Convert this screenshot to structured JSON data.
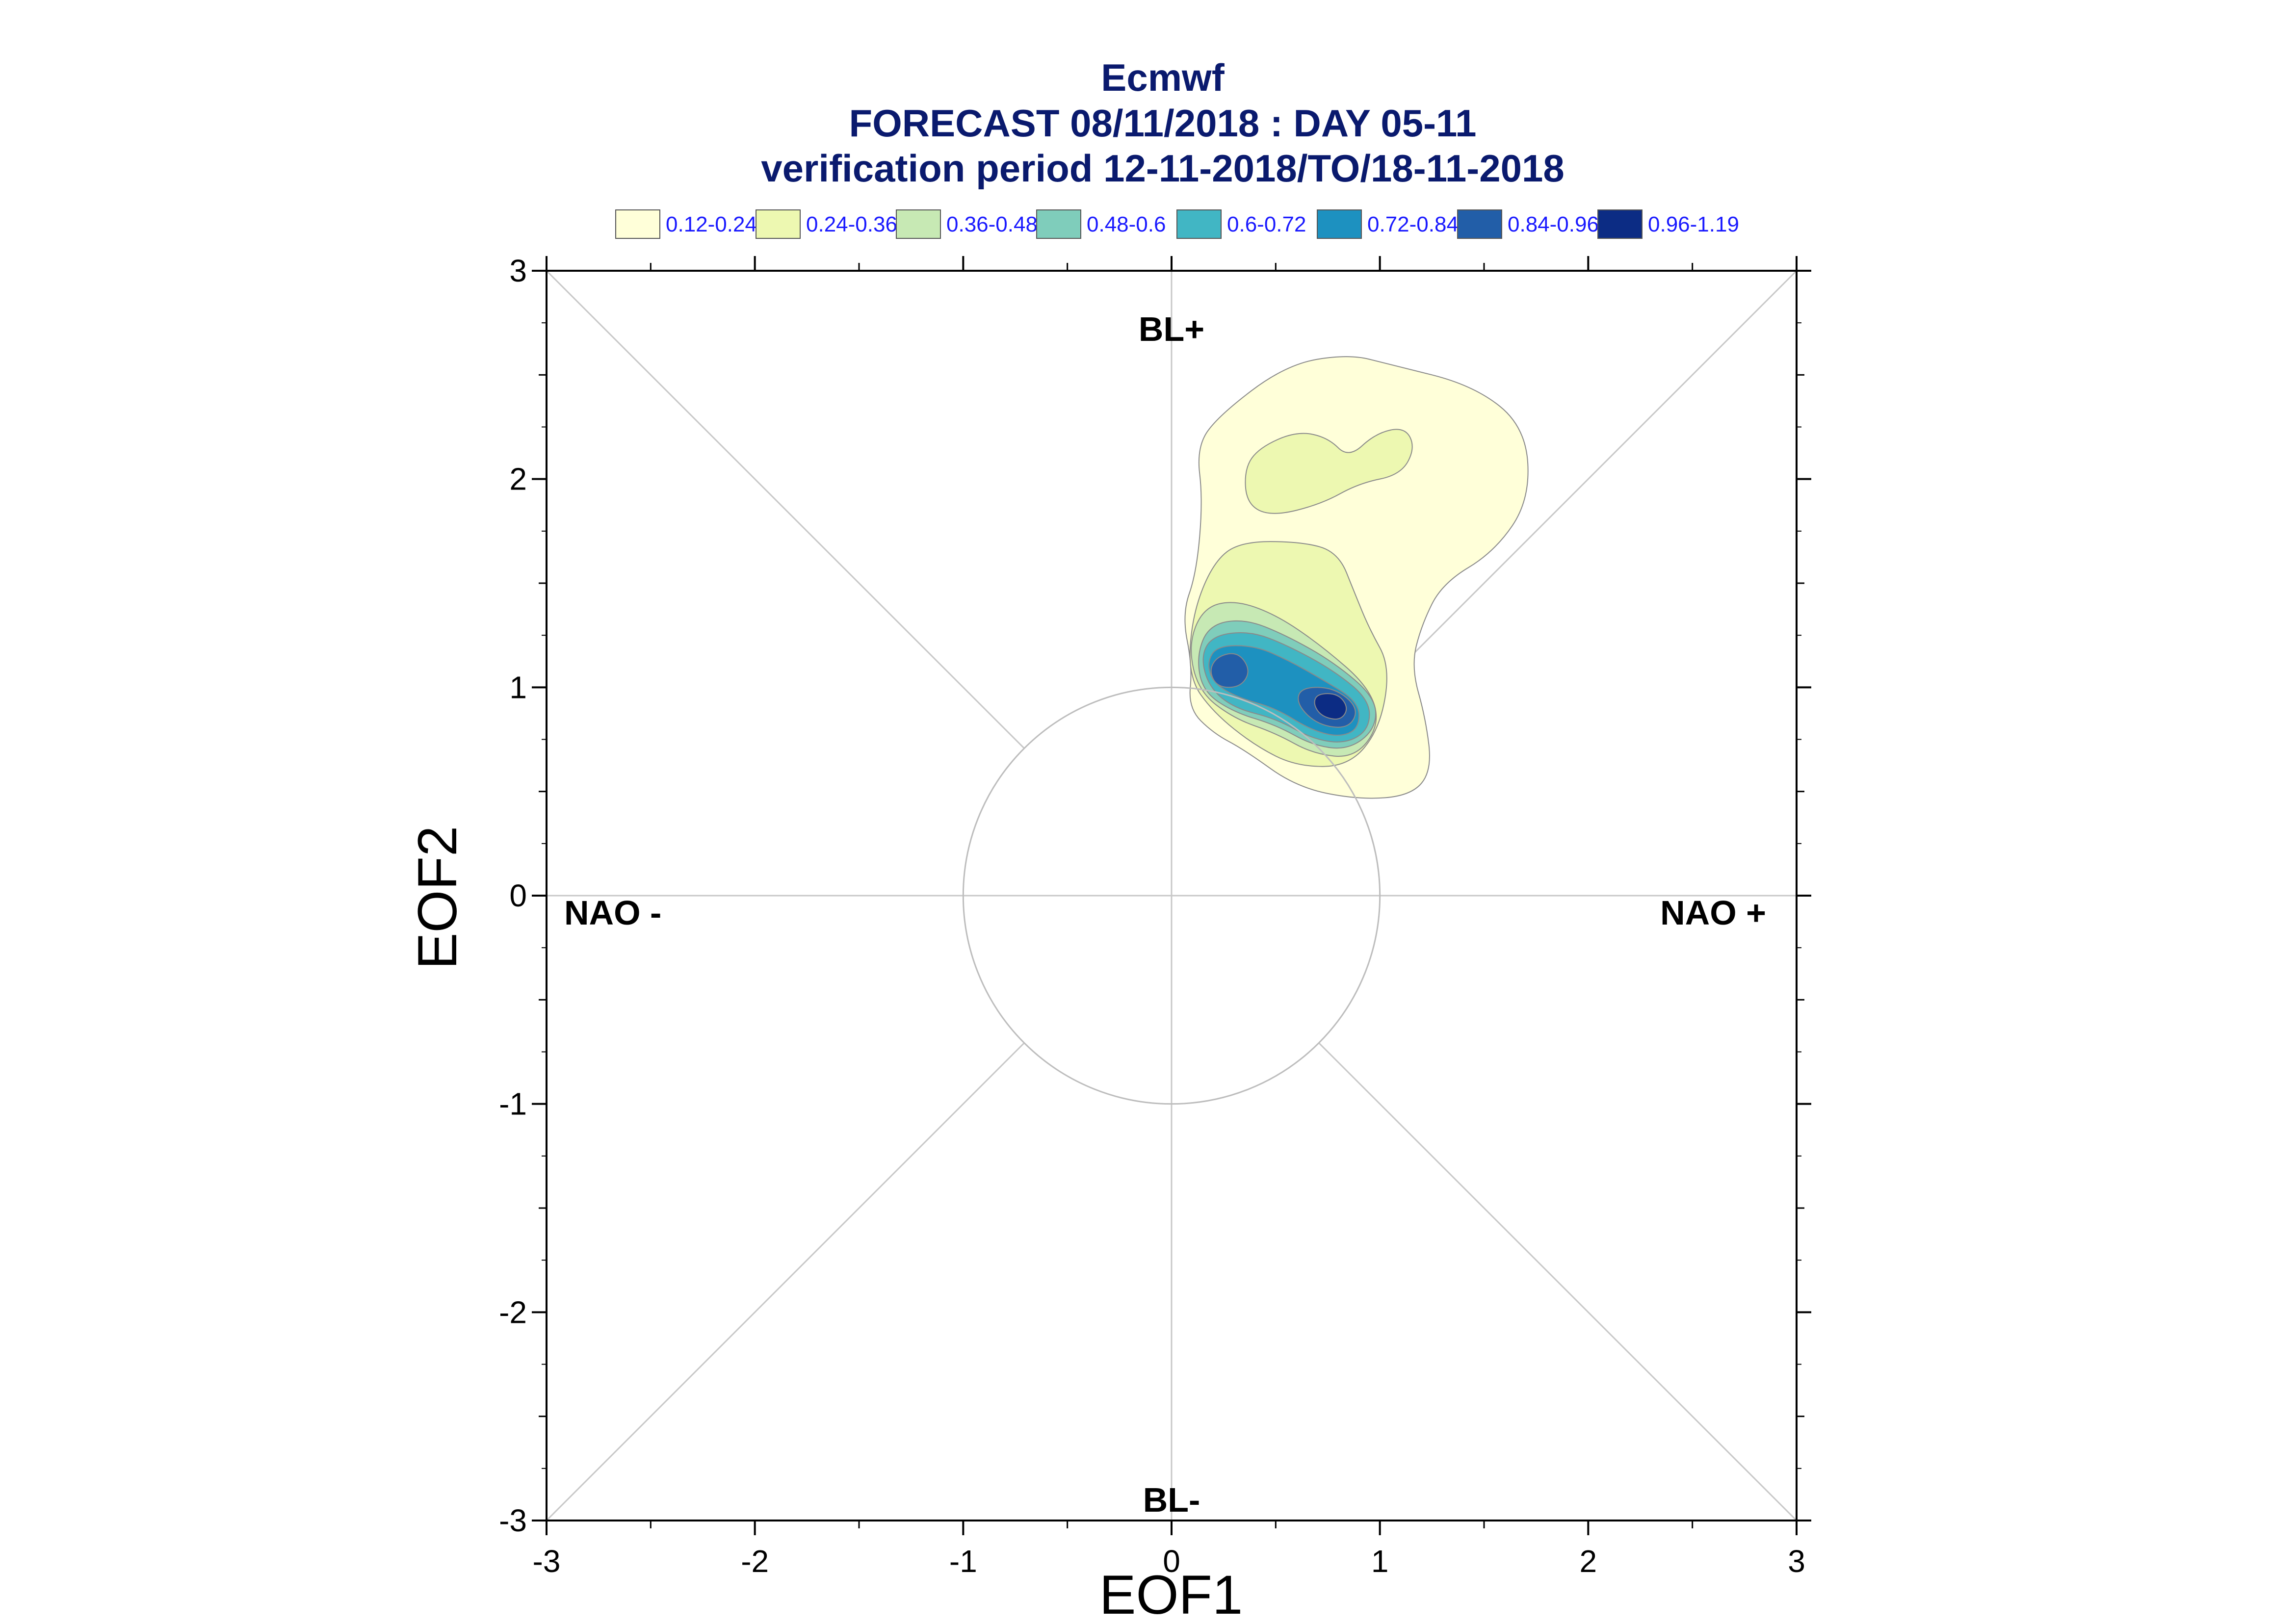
{
  "title": {
    "line1": "Ecmwf",
    "line2": "FORECAST 08/11/2018 : DAY 05-11",
    "line3": "verification period 12-11-2018/TO/18-11-2018"
  },
  "legend": [
    {
      "label": "0.12-0.24",
      "color": "#ffffd9"
    },
    {
      "label": "0.24-0.36",
      "color": "#edf8b1"
    },
    {
      "label": "0.36-0.48",
      "color": "#c7e9b4"
    },
    {
      "label": "0.48-0.6",
      "color": "#7fcdbb"
    },
    {
      "label": "0.6-0.72",
      "color": "#41b6c4"
    },
    {
      "label": "0.72-0.84",
      "color": "#1d91c0"
    },
    {
      "label": "0.84-0.96",
      "color": "#225ea8"
    },
    {
      "label": "0.96-1.19",
      "color": "#0c2c84"
    }
  ],
  "regimes": {
    "top": "BL+",
    "bottom": "BL-",
    "left": "NAO -",
    "right": "NAO +"
  },
  "chart_data": {
    "type": "contour",
    "xlabel": "EOF1",
    "ylabel": "EOF2",
    "xlim": [
      -3,
      3
    ],
    "ylim": [
      -3,
      3
    ],
    "xticks": [
      "-3",
      "-2",
      "-1",
      "0",
      "1",
      "2",
      "3"
    ],
    "yticks": [
      "3",
      "2",
      "1",
      "0",
      "-1",
      "-2",
      "-3"
    ],
    "reference_circle_radius": 1,
    "density_levels": [
      0.12,
      0.24,
      0.36,
      0.48,
      0.6,
      0.72,
      0.84,
      0.96,
      1.19
    ],
    "contours": [
      {
        "level": "0.12-0.24",
        "points": [
          [
            0.1,
            1.1
          ],
          [
            0.05,
            1.35
          ],
          [
            0.12,
            1.55
          ],
          [
            0.15,
            1.9
          ],
          [
            0.12,
            2.15
          ],
          [
            0.22,
            2.3
          ],
          [
            0.55,
            2.55
          ],
          [
            0.85,
            2.6
          ],
          [
            1.05,
            2.55
          ],
          [
            1.45,
            2.45
          ],
          [
            1.7,
            2.25
          ],
          [
            1.72,
            1.9
          ],
          [
            1.55,
            1.65
          ],
          [
            1.3,
            1.5
          ],
          [
            1.2,
            1.3
          ],
          [
            1.15,
            1.1
          ],
          [
            1.22,
            0.85
          ],
          [
            1.25,
            0.6
          ],
          [
            1.15,
            0.48
          ],
          [
            0.9,
            0.46
          ],
          [
            0.6,
            0.52
          ],
          [
            0.35,
            0.7
          ],
          [
            0.2,
            0.78
          ],
          [
            0.08,
            0.9
          ]
        ]
      },
      {
        "level": "0.24-0.36",
        "points": [
          [
            0.33,
            1.7
          ],
          [
            0.62,
            1.7
          ],
          [
            0.8,
            1.65
          ],
          [
            0.88,
            1.45
          ],
          [
            0.95,
            1.28
          ],
          [
            1.05,
            1.1
          ],
          [
            1.0,
            0.8
          ],
          [
            0.85,
            0.62
          ],
          [
            0.6,
            0.62
          ],
          [
            0.4,
            0.72
          ],
          [
            0.2,
            0.88
          ],
          [
            0.08,
            1.05
          ],
          [
            0.1,
            1.35
          ],
          [
            0.2,
            1.6
          ]
        ]
      },
      {
        "level": "0.24-0.36",
        "points": [
          [
            0.35,
            2.05
          ],
          [
            0.42,
            2.15
          ],
          [
            0.6,
            2.23
          ],
          [
            0.75,
            2.2
          ],
          [
            0.85,
            2.1
          ],
          [
            0.98,
            2.22
          ],
          [
            1.12,
            2.25
          ],
          [
            1.17,
            2.15
          ],
          [
            1.1,
            2.02
          ],
          [
            0.9,
            1.98
          ],
          [
            0.72,
            1.88
          ],
          [
            0.48,
            1.82
          ],
          [
            0.36,
            1.88
          ]
        ]
      },
      {
        "level": "0.36-0.48",
        "points": [
          [
            0.15,
            1.38
          ],
          [
            0.3,
            1.42
          ],
          [
            0.5,
            1.35
          ],
          [
            0.72,
            1.2
          ],
          [
            0.95,
            1.0
          ],
          [
            1.0,
            0.82
          ],
          [
            0.88,
            0.66
          ],
          [
            0.68,
            0.68
          ],
          [
            0.5,
            0.78
          ],
          [
            0.3,
            0.85
          ],
          [
            0.13,
            0.98
          ],
          [
            0.08,
            1.2
          ]
        ]
      },
      {
        "level": "0.48-0.6",
        "points": [
          [
            0.18,
            1.3
          ],
          [
            0.35,
            1.33
          ],
          [
            0.55,
            1.25
          ],
          [
            0.78,
            1.12
          ],
          [
            0.98,
            0.95
          ],
          [
            0.98,
            0.8
          ],
          [
            0.85,
            0.7
          ],
          [
            0.68,
            0.72
          ],
          [
            0.5,
            0.82
          ],
          [
            0.3,
            0.88
          ],
          [
            0.15,
            0.98
          ],
          [
            0.12,
            1.15
          ]
        ]
      },
      {
        "level": "0.6-0.72",
        "points": [
          [
            0.2,
            1.25
          ],
          [
            0.38,
            1.27
          ],
          [
            0.56,
            1.2
          ],
          [
            0.78,
            1.08
          ],
          [
            0.95,
            0.94
          ],
          [
            0.95,
            0.8
          ],
          [
            0.84,
            0.73
          ],
          [
            0.68,
            0.75
          ],
          [
            0.5,
            0.85
          ],
          [
            0.3,
            0.9
          ],
          [
            0.18,
            1.0
          ],
          [
            0.14,
            1.15
          ]
        ]
      },
      {
        "level": "0.72-0.84",
        "points": [
          [
            0.22,
            1.2
          ],
          [
            0.4,
            1.2
          ],
          [
            0.56,
            1.13
          ],
          [
            0.72,
            1.04
          ],
          [
            0.9,
            0.93
          ],
          [
            0.9,
            0.8
          ],
          [
            0.8,
            0.76
          ],
          [
            0.66,
            0.8
          ],
          [
            0.5,
            0.9
          ],
          [
            0.32,
            0.95
          ],
          [
            0.2,
            1.02
          ],
          [
            0.17,
            1.12
          ]
        ]
      },
      {
        "level": "0.84-0.96",
        "points": [
          [
            0.22,
            1.15
          ],
          [
            0.32,
            1.17
          ],
          [
            0.38,
            1.08
          ],
          [
            0.33,
            1.0
          ],
          [
            0.22,
            1.0
          ],
          [
            0.18,
            1.08
          ]
        ]
      },
      {
        "level": "0.84-0.96",
        "points": [
          [
            0.62,
            1.0
          ],
          [
            0.78,
            1.0
          ],
          [
            0.9,
            0.9
          ],
          [
            0.85,
            0.8
          ],
          [
            0.7,
            0.82
          ],
          [
            0.6,
            0.92
          ]
        ]
      },
      {
        "level": "0.96-1.19",
        "points": [
          [
            0.7,
            0.97
          ],
          [
            0.8,
            0.97
          ],
          [
            0.85,
            0.9
          ],
          [
            0.81,
            0.84
          ],
          [
            0.72,
            0.86
          ],
          [
            0.68,
            0.92
          ]
        ]
      }
    ]
  }
}
